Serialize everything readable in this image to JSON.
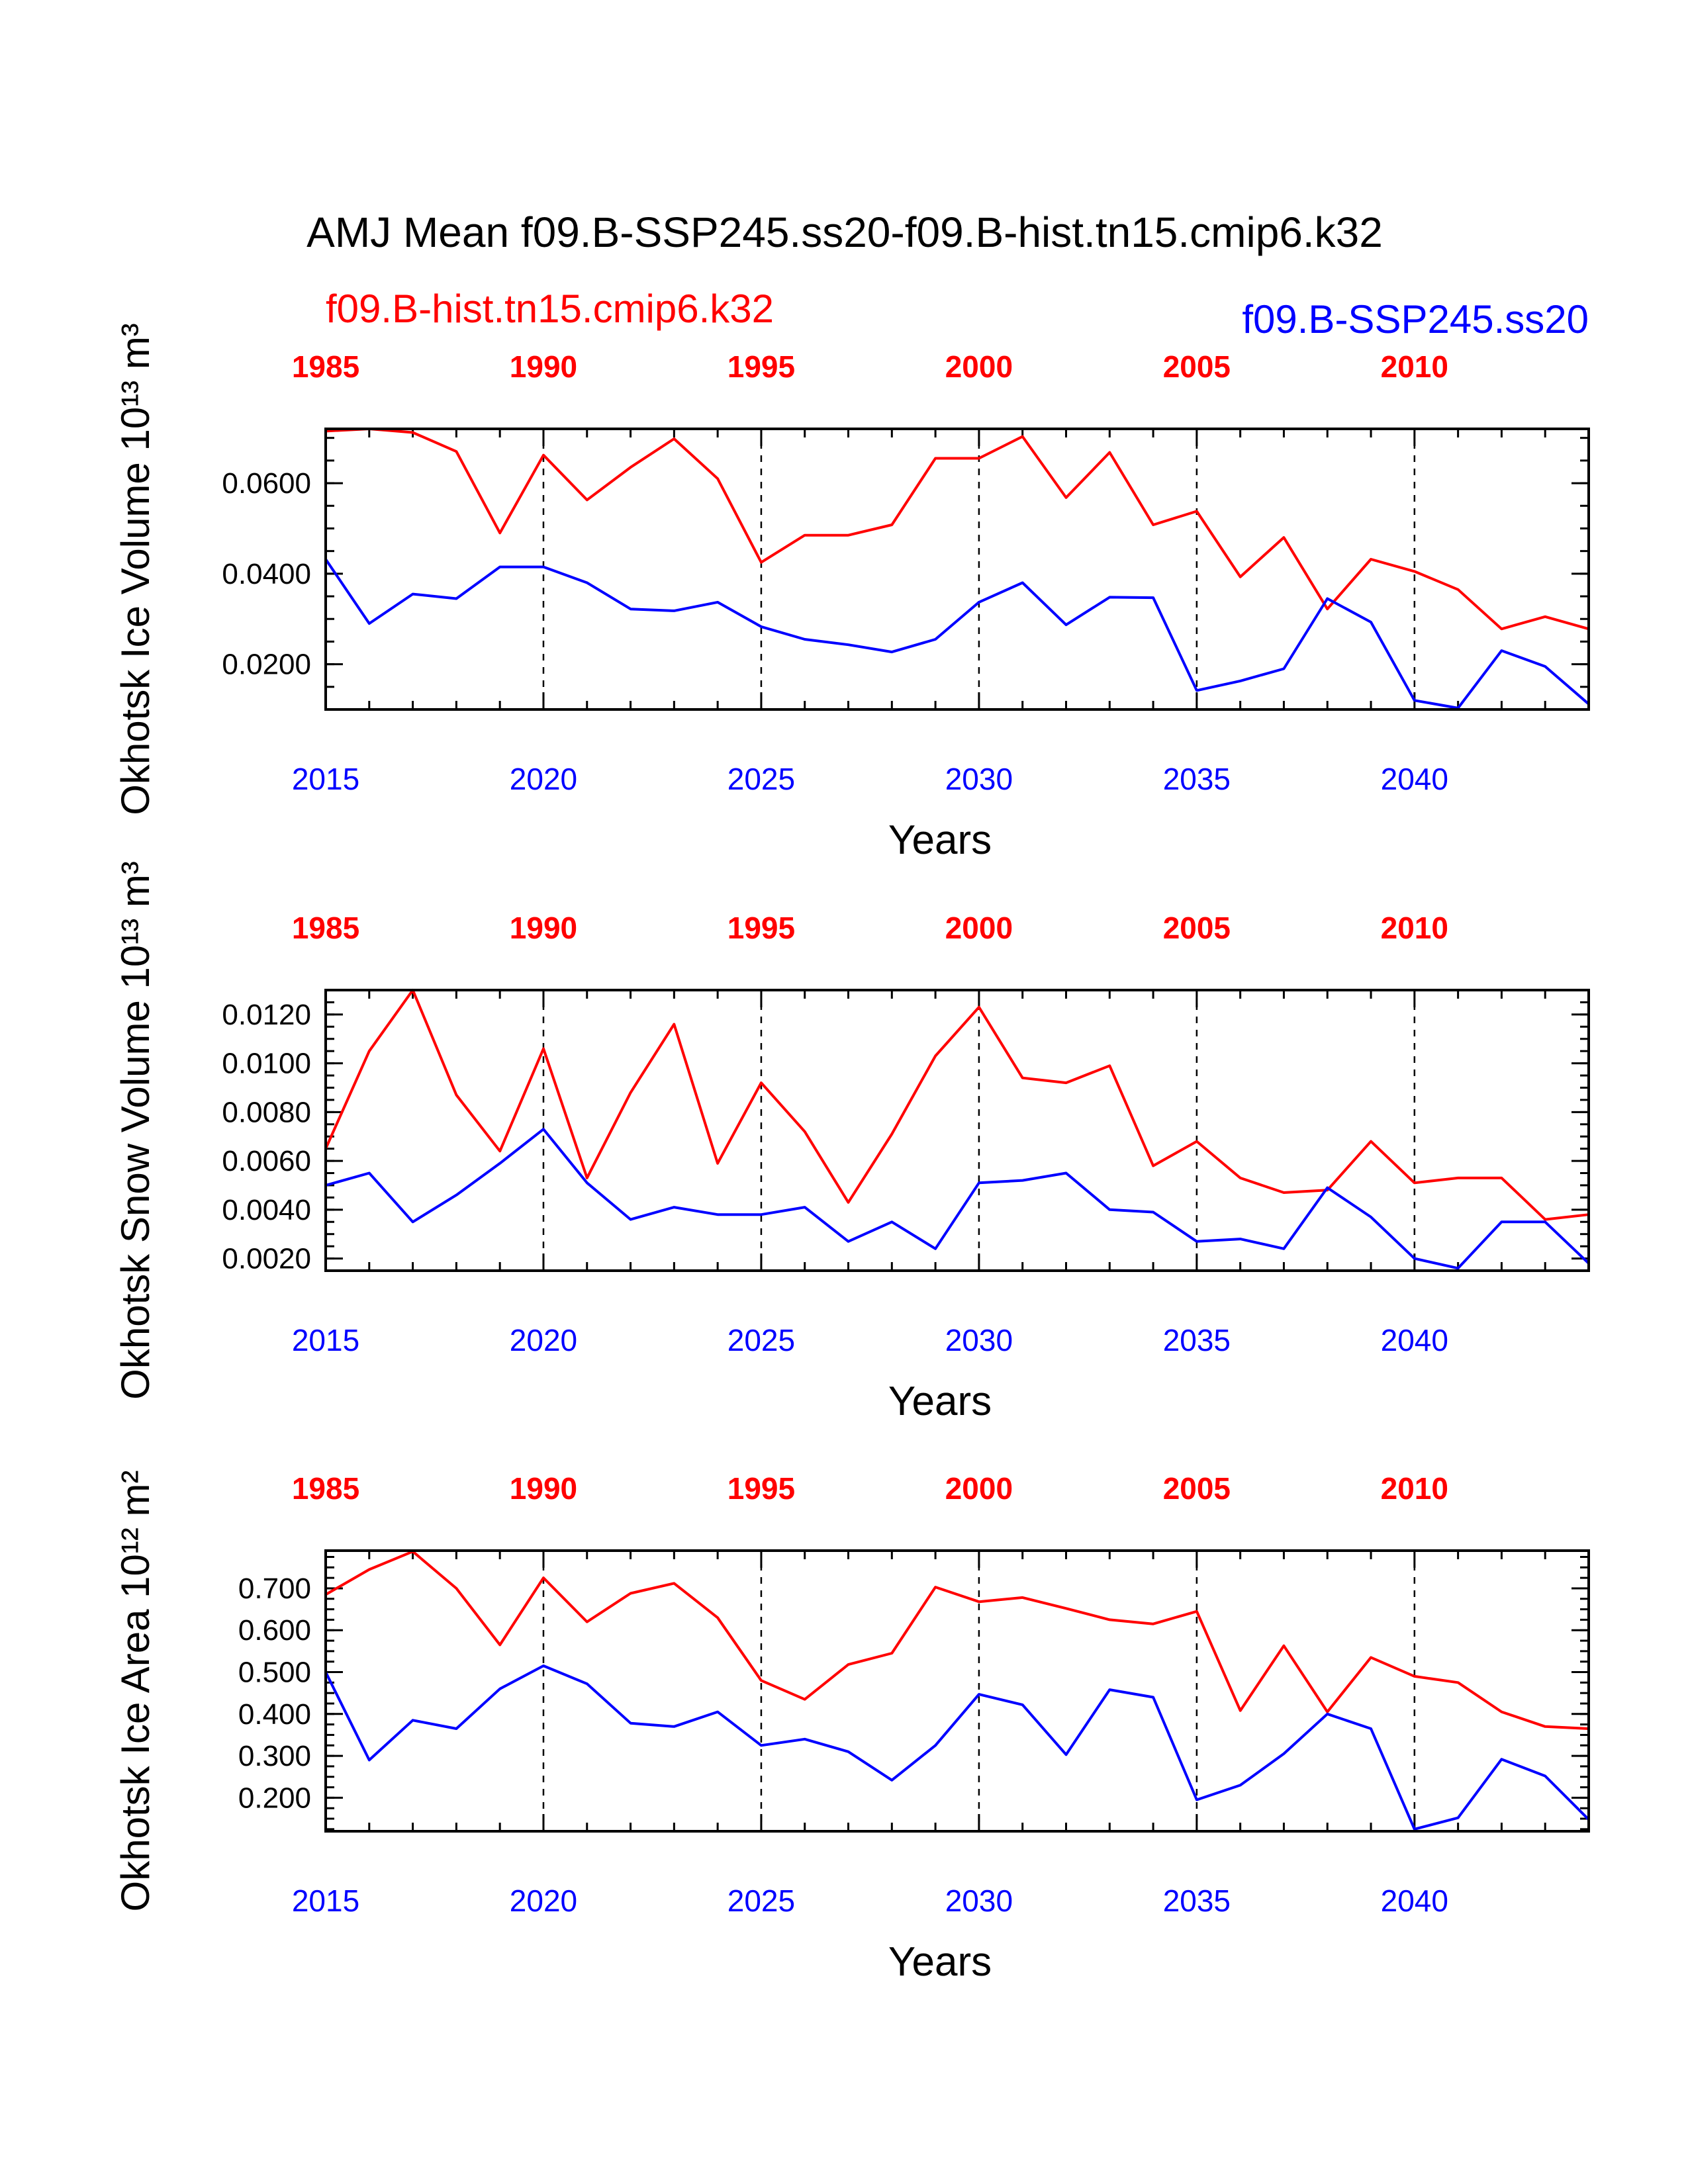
{
  "title": "AMJ Mean f09.B-SSP245.ss20-f09.B-hist.tn15.cmip6.k32",
  "legend": {
    "hist_label": "f09.B-hist.tn15.cmip6.k32",
    "ssp_label": "f09.B-SSP245.ss20",
    "hist_color": "#ff0000",
    "ssp_color": "#0000ff"
  },
  "chart_data": [
    {
      "type": "line",
      "ylabel": "Okhotsk Ice Volume 10¹³ m³",
      "xlabel": "Years",
      "x_bottom": [
        2015,
        2016,
        2017,
        2018,
        2019,
        2020,
        2021,
        2022,
        2023,
        2024,
        2025,
        2026,
        2027,
        2028,
        2029,
        2030,
        2031,
        2032,
        2033,
        2034,
        2035,
        2036,
        2037,
        2038,
        2039,
        2040,
        2041,
        2042,
        2043,
        2044
      ],
      "x_top_ticks": [
        "1985",
        "1990",
        "1995",
        "2000",
        "2005",
        "2010"
      ],
      "x_bottom_ticks": [
        "2015",
        "2020",
        "2025",
        "2030",
        "2035",
        "2040"
      ],
      "xlim": [
        2015,
        2044
      ],
      "ylim": [
        0.01,
        0.072
      ],
      "y_ticks": [
        0.02,
        0.04,
        0.06
      ],
      "y_tick_labels": [
        "0.0200",
        "0.0400",
        "0.0600"
      ],
      "y_minor_step": 0.005,
      "series": [
        {
          "name": "f09.B-hist.tn15.cmip6.k32",
          "color": "#ff0000",
          "values": [
            0.0715,
            0.072,
            0.0712,
            0.067,
            0.049,
            0.0662,
            0.0563,
            0.0635,
            0.0698,
            0.061,
            0.0425,
            0.0485,
            0.0485,
            0.0508,
            0.0655,
            0.0655,
            0.0703,
            0.0568,
            0.0668,
            0.0508,
            0.0538,
            0.0393,
            0.048,
            0.0322,
            0.0432,
            0.0405,
            0.0365,
            0.0278,
            0.0305,
            0.0278
          ]
        },
        {
          "name": "f09.B-SSP245.ss20",
          "color": "#0000ff",
          "values": [
            0.0432,
            0.029,
            0.0355,
            0.0345,
            0.0415,
            0.0415,
            0.038,
            0.0322,
            0.0318,
            0.0337,
            0.0283,
            0.0255,
            0.0243,
            0.0227,
            0.0255,
            0.0337,
            0.038,
            0.0287,
            0.0348,
            0.0347,
            0.0142,
            0.0163,
            0.019,
            0.0345,
            0.0293,
            0.012,
            0.0103,
            0.023,
            0.0195,
            0.0112
          ]
        }
      ]
    },
    {
      "type": "line",
      "ylabel": "Okhotsk Snow Volume 10¹³ m³",
      "xlabel": "Years",
      "x_bottom": [
        2015,
        2016,
        2017,
        2018,
        2019,
        2020,
        2021,
        2022,
        2023,
        2024,
        2025,
        2026,
        2027,
        2028,
        2029,
        2030,
        2031,
        2032,
        2033,
        2034,
        2035,
        2036,
        2037,
        2038,
        2039,
        2040,
        2041,
        2042,
        2043,
        2044
      ],
      "x_top_ticks": [
        "1985",
        "1990",
        "1995",
        "2000",
        "2005",
        "2010"
      ],
      "x_bottom_ticks": [
        "2015",
        "2020",
        "2025",
        "2030",
        "2035",
        "2040"
      ],
      "xlim": [
        2015,
        2044
      ],
      "ylim": [
        0.0015,
        0.013
      ],
      "y_ticks": [
        0.002,
        0.004,
        0.006,
        0.008,
        0.01,
        0.012
      ],
      "y_tick_labels": [
        "0.0020",
        "0.0040",
        "0.0060",
        "0.0080",
        "0.0100",
        "0.0120"
      ],
      "y_minor_step": 0.0005,
      "series": [
        {
          "name": "f09.B-hist.tn15.cmip6.k32",
          "color": "#ff0000",
          "values": [
            0.0065,
            0.0105,
            0.013,
            0.0087,
            0.0064,
            0.0106,
            0.0053,
            0.0088,
            0.0116,
            0.0059,
            0.0092,
            0.0072,
            0.0043,
            0.0071,
            0.0103,
            0.0123,
            0.0094,
            0.0092,
            0.0099,
            0.0058,
            0.0068,
            0.0053,
            0.0047,
            0.0048,
            0.0068,
            0.0051,
            0.0053,
            0.0053,
            0.0036,
            0.0038
          ]
        },
        {
          "name": "f09.B-SSP245.ss20",
          "color": "#0000ff",
          "values": [
            0.005,
            0.0055,
            0.0035,
            0.0046,
            0.0059,
            0.0073,
            0.0051,
            0.0036,
            0.0041,
            0.0038,
            0.0038,
            0.0041,
            0.0027,
            0.0035,
            0.0024,
            0.0051,
            0.0052,
            0.0055,
            0.004,
            0.0039,
            0.0027,
            0.0028,
            0.0024,
            0.0049,
            0.0037,
            0.002,
            0.0016,
            0.0035,
            0.0035,
            0.0018
          ]
        }
      ]
    },
    {
      "type": "line",
      "ylabel": "Okhotsk Ice Area 10¹² m²",
      "xlabel": "Years",
      "x_bottom": [
        2015,
        2016,
        2017,
        2018,
        2019,
        2020,
        2021,
        2022,
        2023,
        2024,
        2025,
        2026,
        2027,
        2028,
        2029,
        2030,
        2031,
        2032,
        2033,
        2034,
        2035,
        2036,
        2037,
        2038,
        2039,
        2040,
        2041,
        2042,
        2043,
        2044
      ],
      "x_top_ticks": [
        "1985",
        "1990",
        "1995",
        "2000",
        "2005",
        "2010"
      ],
      "x_bottom_ticks": [
        "2015",
        "2020",
        "2025",
        "2030",
        "2035",
        "2040"
      ],
      "xlim": [
        2015,
        2044
      ],
      "ylim": [
        0.12,
        0.79
      ],
      "y_ticks": [
        0.2,
        0.3,
        0.4,
        0.5,
        0.6,
        0.7
      ],
      "y_tick_labels": [
        "0.200",
        "0.300",
        "0.400",
        "0.500",
        "0.600",
        "0.700"
      ],
      "y_minor_step": 0.025,
      "series": [
        {
          "name": "f09.B-hist.tn15.cmip6.k32",
          "color": "#ff0000",
          "values": [
            0.685,
            0.745,
            0.788,
            0.7,
            0.565,
            0.725,
            0.62,
            0.688,
            0.712,
            0.63,
            0.48,
            0.435,
            0.518,
            0.545,
            0.703,
            0.668,
            0.678,
            0.652,
            0.625,
            0.615,
            0.645,
            0.408,
            0.563,
            0.405,
            0.535,
            0.49,
            0.475,
            0.405,
            0.37,
            0.365
          ]
        },
        {
          "name": "f09.B-SSP245.ss20",
          "color": "#0000ff",
          "values": [
            0.5,
            0.29,
            0.385,
            0.365,
            0.46,
            0.515,
            0.472,
            0.378,
            0.37,
            0.405,
            0.325,
            0.34,
            0.31,
            0.242,
            0.325,
            0.447,
            0.422,
            0.303,
            0.458,
            0.44,
            0.195,
            0.23,
            0.305,
            0.4,
            0.365,
            0.125,
            0.152,
            0.292,
            0.252,
            0.148
          ]
        }
      ]
    }
  ]
}
